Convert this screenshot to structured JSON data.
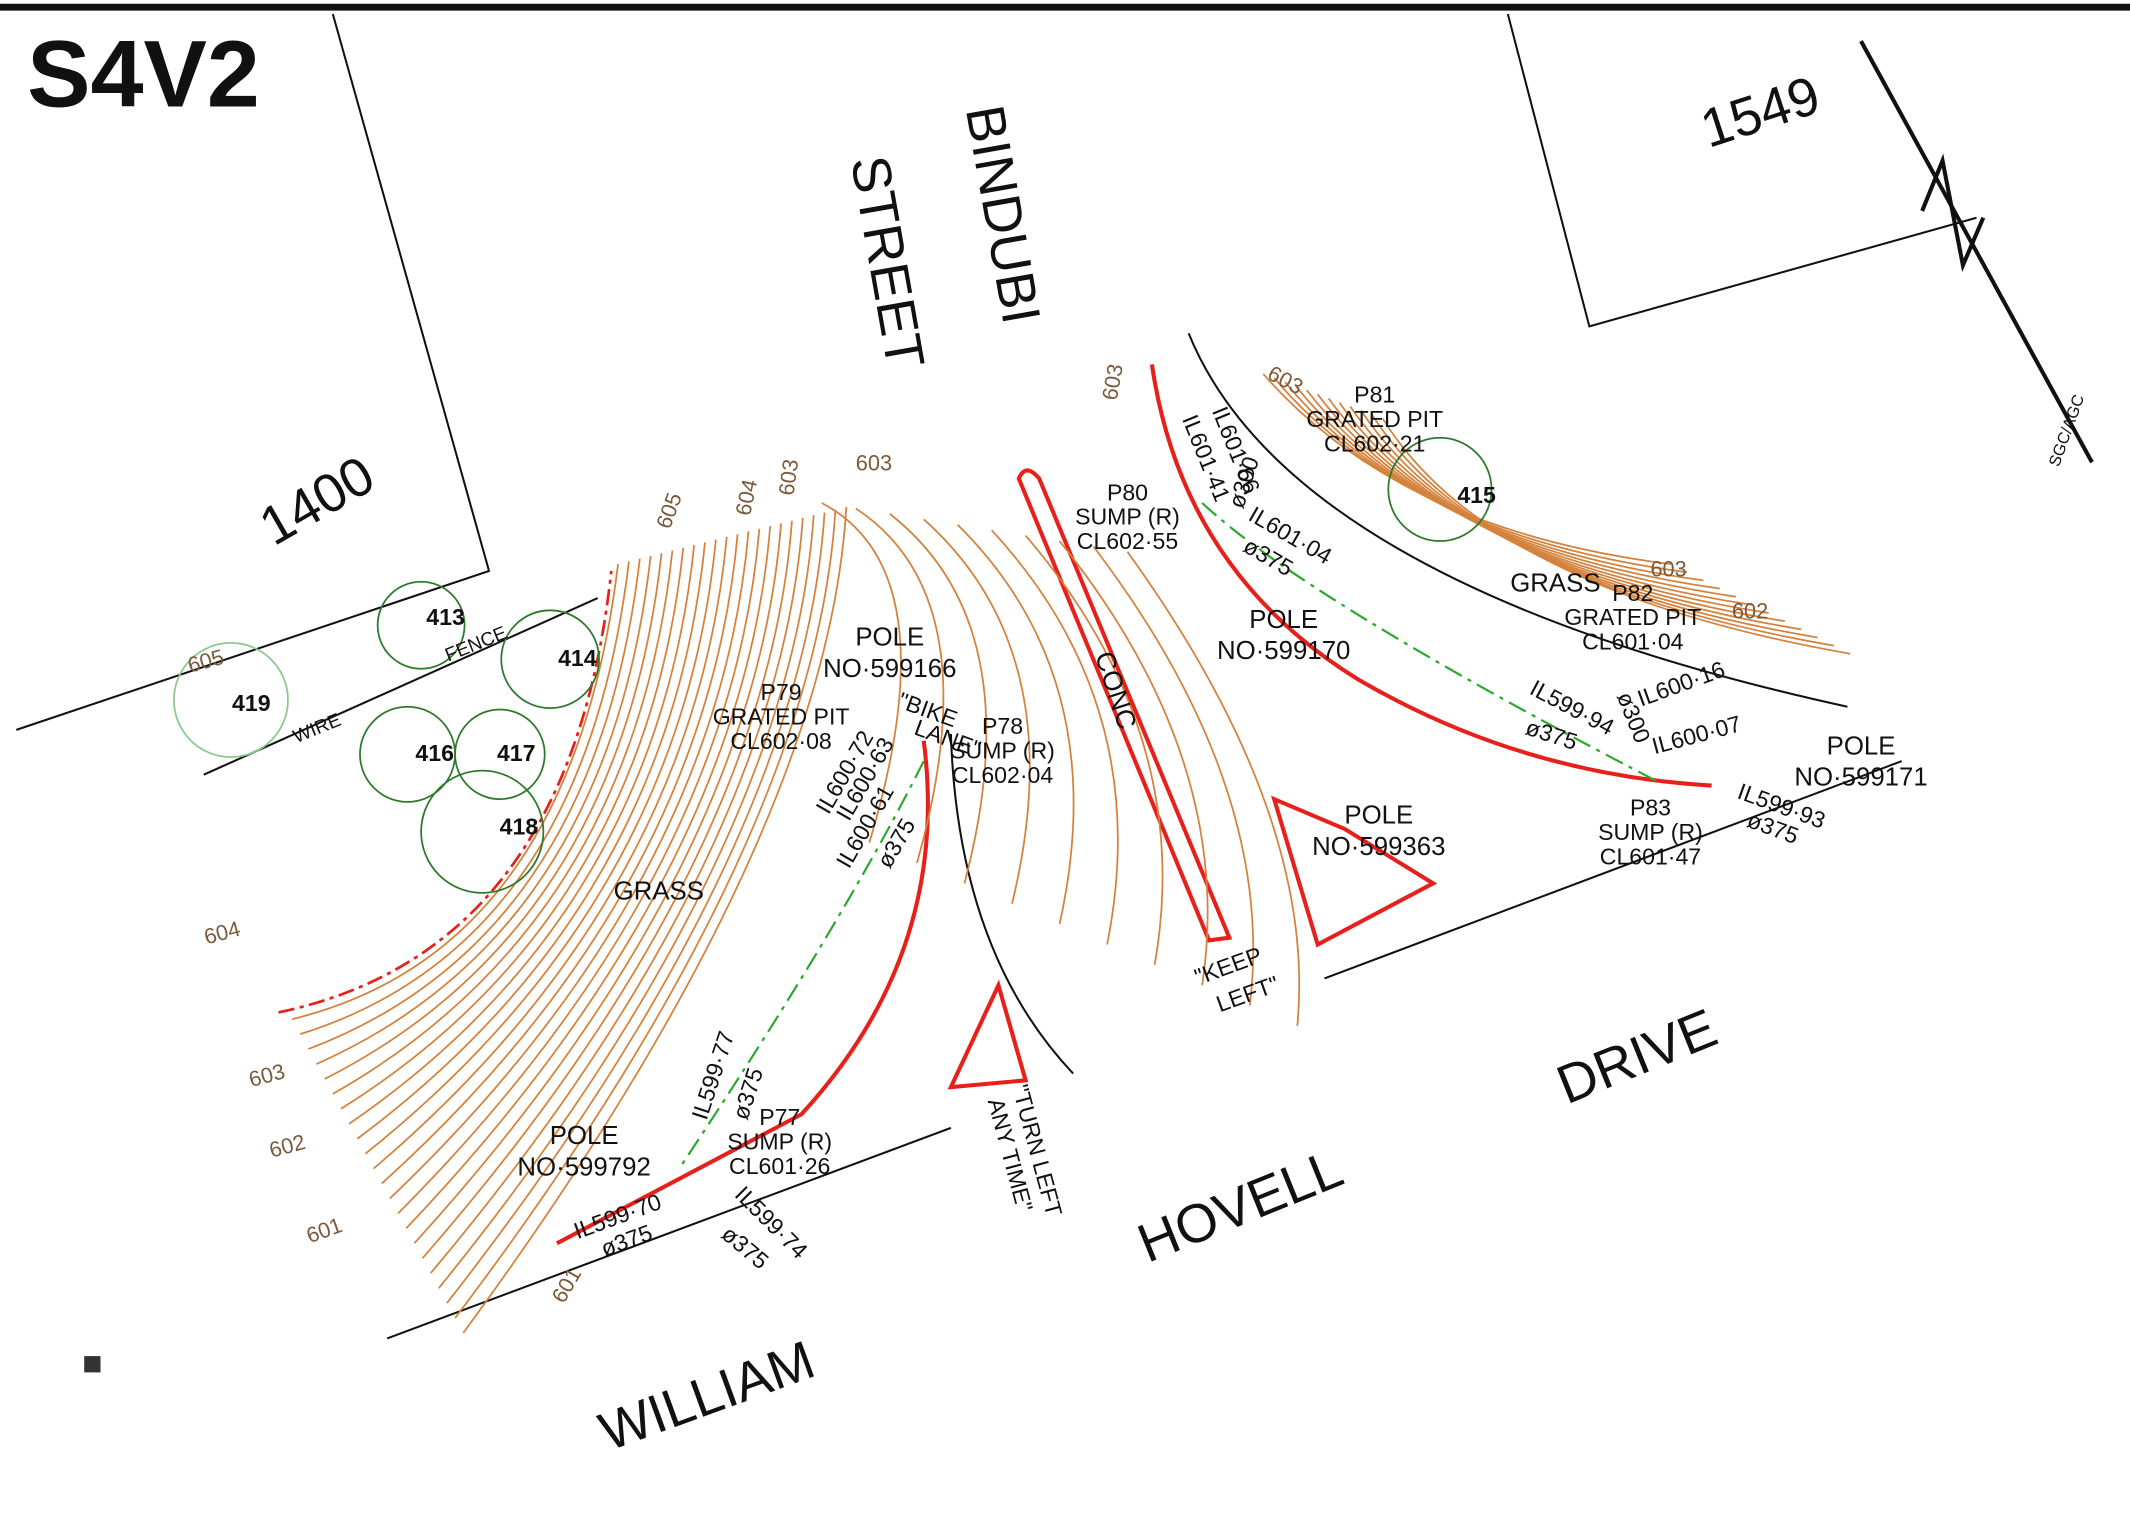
{
  "title": "S4V2",
  "lots": [
    "1400",
    "1549"
  ],
  "streets": [
    "BINDUBI",
    "STREET",
    "WILLIAM",
    "HOVELL",
    "DRIVE"
  ],
  "surfaces": [
    "CONC",
    "GRASS",
    "GRASS"
  ],
  "trees": [
    "413",
    "414",
    "415",
    "416",
    "417",
    "418",
    "419"
  ],
  "fence_labels": [
    "WIRE",
    "FENCE"
  ],
  "north_note": "SGC/AGC",
  "contours": [
    "605",
    "604",
    "603",
    "603",
    "603",
    "603",
    "603",
    "602",
    "605",
    "604",
    "603",
    "602",
    "601",
    "601"
  ],
  "pits": [
    {
      "id": "P79",
      "type": "GRATED PIT",
      "level": "CL602·08"
    },
    {
      "id": "P78",
      "type": "SUMP (R)",
      "level": "CL602·04"
    },
    {
      "id": "P80",
      "type": "SUMP (R)",
      "level": "CL602·55"
    },
    {
      "id": "P81",
      "type": "GRATED PIT",
      "level": "CL602·21"
    },
    {
      "id": "P82",
      "type": "GRATED PIT",
      "level": "CL601·04"
    },
    {
      "id": "P83",
      "type": "SUMP (R)",
      "level": "CL601·47"
    },
    {
      "id": "P77",
      "type": "SUMP (R)",
      "level": "CL601·26"
    }
  ],
  "poles": [
    {
      "label": "POLE",
      "number": "NO·599166"
    },
    {
      "label": "POLE",
      "number": "NO·599170"
    },
    {
      "label": "POLE",
      "number": "NO·599792"
    },
    {
      "label": "POLE",
      "number": "NO·599171"
    },
    {
      "label": "POLE",
      "number": "NO·599363"
    }
  ],
  "inverts": [
    "IL600·72",
    "IL600·63",
    "IL600·61",
    "ø375",
    "IL599·77",
    "ø375",
    "IL599·70",
    "ø375",
    "IL599·74",
    "ø375",
    "IL601·66",
    "IL601·41",
    "ø300",
    "IL601·04",
    "ø375",
    "IL599·94",
    "ø375",
    "ø300",
    "IL600·16",
    "IL600·07",
    "IL599·93",
    "ø375"
  ],
  "signs": [
    "\"BIKE",
    "LANE\"",
    "\"KEEP",
    "LEFT\"",
    "\"TURN LEFT",
    "ANY TIME\""
  ]
}
